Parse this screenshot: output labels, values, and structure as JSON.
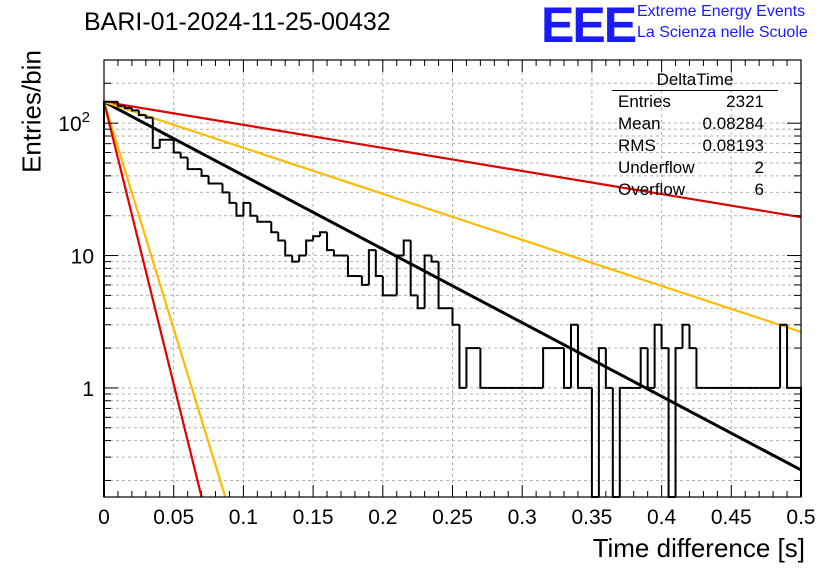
{
  "header": {
    "title": "BARI-01-2024-11-25-00432",
    "logo_text": "EEE",
    "org_line1": "Extreme Energy Events",
    "org_line2": "La Scienza nelle Scuole"
  },
  "stats_box": {
    "name": "DeltaTime",
    "rows": [
      {
        "label": "Entries",
        "value": "2321"
      },
      {
        "label": "Mean",
        "value": "0.08284"
      },
      {
        "label": "RMS",
        "value": "0.08193"
      },
      {
        "label": "Underflow",
        "value": "2"
      },
      {
        "label": "Overflow",
        "value": "6"
      }
    ]
  },
  "chart_data": {
    "type": "line",
    "xlabel": "Time difference [s]",
    "ylabel": "Entries/bin",
    "xlim": [
      0,
      0.5
    ],
    "ylim": [
      0.15,
      300
    ],
    "yscale": "log",
    "grid": true,
    "x_ticks": [
      "0",
      "0.05",
      "0.1",
      "0.15",
      "0.2",
      "0.25",
      "0.3",
      "0.35",
      "0.4",
      "0.45",
      "0.5"
    ],
    "y_ticks": [
      "1",
      "10",
      "10^2"
    ],
    "histogram": {
      "bin_width": 0.005,
      "values": [
        145,
        145,
        135,
        130,
        125,
        115,
        110,
        65,
        75,
        75,
        60,
        55,
        45,
        45,
        40,
        35,
        35,
        30,
        25,
        20,
        25,
        20,
        18,
        18,
        15,
        13,
        10,
        9,
        10,
        13,
        14,
        15,
        11,
        10,
        10,
        7,
        7,
        6,
        11,
        7,
        5,
        5,
        10,
        13,
        5,
        4,
        10,
        9,
        4,
        4,
        3,
        1,
        2,
        2,
        1,
        1,
        1,
        1,
        1,
        1,
        1,
        1,
        1,
        2,
        2,
        2,
        1,
        3,
        1,
        1,
        0.1,
        2,
        1,
        0.1,
        1,
        1,
        1,
        2,
        1,
        3,
        2,
        0.1,
        2,
        3,
        2,
        1,
        1,
        1,
        1,
        1,
        1,
        1,
        1,
        1,
        1,
        1,
        1,
        3,
        1,
        1
      ]
    },
    "series": [
      {
        "color": "#000000",
        "start": 145,
        "end": 0.24
      },
      {
        "color": "#e00000",
        "start": 145,
        "end": 19.5
      },
      {
        "color": "#ffbb00",
        "start": 145,
        "end": 2.65
      },
      {
        "color": "#ffbb00",
        "start": 145,
        "end_x": 0.087,
        "end": 0.15
      },
      {
        "color": "#e00000",
        "start": 145,
        "end_x": 0.07,
        "end": 0.15
      }
    ]
  }
}
